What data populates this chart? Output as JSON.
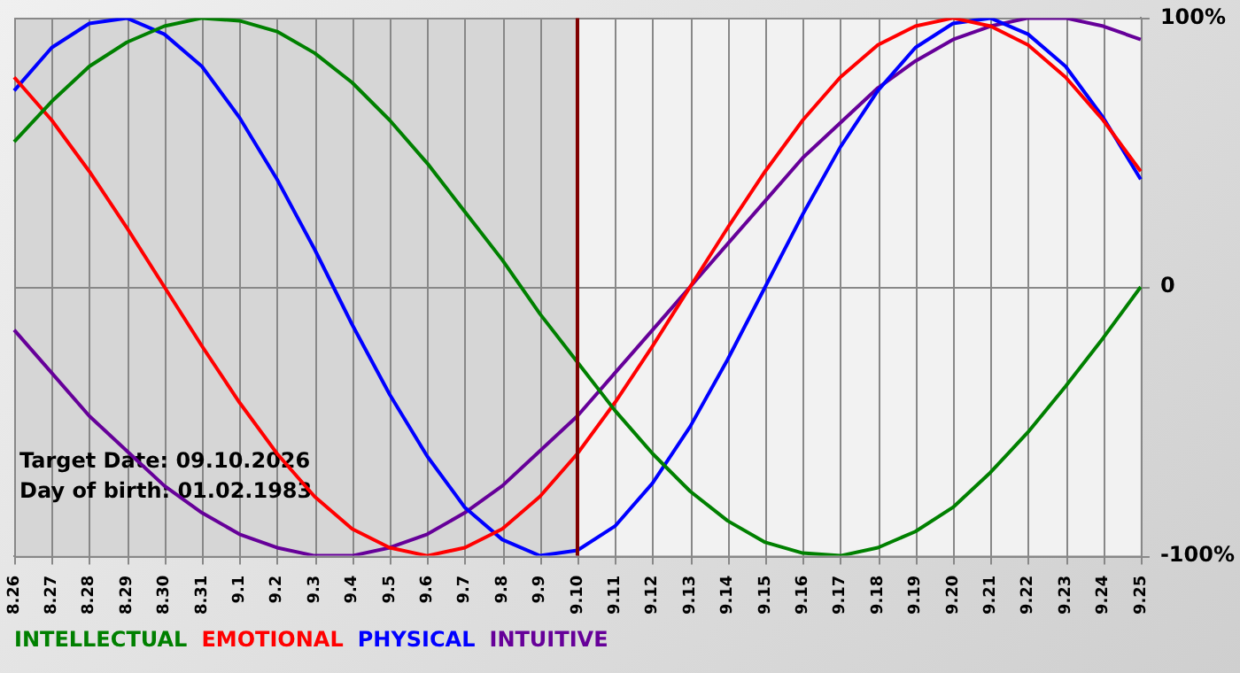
{
  "chart_data": {
    "type": "line",
    "categories": [
      "8.26",
      "8.27",
      "8.28",
      "8.29",
      "8.30",
      "8.31",
      "9.1",
      "9.2",
      "9.3",
      "9.4",
      "9.5",
      "9.6",
      "9.7",
      "9.8",
      "9.9",
      "9.10",
      "9.11",
      "9.12",
      "9.13",
      "9.14",
      "9.15",
      "9.16",
      "9.17",
      "9.18",
      "9.19",
      "9.20",
      "9.21",
      "9.22",
      "9.23",
      "9.24",
      "9.25"
    ],
    "series": [
      {
        "name": "INTELLECTUAL",
        "color": "#008000",
        "values": [
          54,
          69,
          82,
          91,
          97,
          100,
          99,
          95,
          87,
          76,
          62,
          46,
          28,
          10,
          -10,
          -28,
          -46,
          -62,
          -76,
          -87,
          -95,
          -99,
          -100,
          -97,
          -91,
          -82,
          -69,
          -54,
          -37,
          -19,
          0
        ]
      },
      {
        "name": "EMOTIONAL",
        "color": "#ff0000",
        "values": [
          78,
          62,
          43,
          22,
          0,
          -22,
          -43,
          -62,
          -78,
          -90,
          -97,
          -100,
          -97,
          -90,
          -78,
          -62,
          -43,
          -22,
          0,
          22,
          43,
          62,
          78,
          90,
          97,
          100,
          97,
          90,
          78,
          62,
          43
        ]
      },
      {
        "name": "PHYSICAL",
        "color": "#0000ff",
        "values": [
          73,
          89,
          98,
          100,
          94,
          82,
          63,
          40,
          14,
          -14,
          -40,
          -63,
          -82,
          -94,
          -100,
          -98,
          -89,
          -73,
          -52,
          -27,
          0,
          27,
          52,
          73,
          89,
          98,
          100,
          94,
          82,
          63,
          40
        ]
      },
      {
        "name": "INTUITIVE",
        "color": "#660099",
        "values": [
          -16,
          -32,
          -48,
          -61,
          -74,
          -84,
          -92,
          -97,
          -100,
          -100,
          -97,
          -92,
          -84,
          -74,
          -61,
          -48,
          -32,
          -16,
          0,
          16,
          32,
          48,
          61,
          74,
          84,
          92,
          97,
          100,
          100,
          97,
          92
        ]
      }
    ],
    "ylim": [
      -100,
      100
    ],
    "yticks": [
      {
        "value": -100,
        "label": "-100%"
      },
      {
        "value": 0,
        "label": "0"
      },
      {
        "value": 100,
        "label": "100%"
      }
    ],
    "grid": true,
    "legend": "bottom",
    "marker": "none",
    "line_style": "solid",
    "ref_lines": [
      {
        "axis": "x",
        "value": "9.10",
        "color": "#800000"
      }
    ],
    "bands": [
      {
        "axis": "x",
        "from": "8.26",
        "to": "9.10",
        "color": "#d6d6d6"
      }
    ],
    "annotations": [
      "Target Date: 09.10.2026",
      "Day of birth: 01.02.1983"
    ]
  }
}
